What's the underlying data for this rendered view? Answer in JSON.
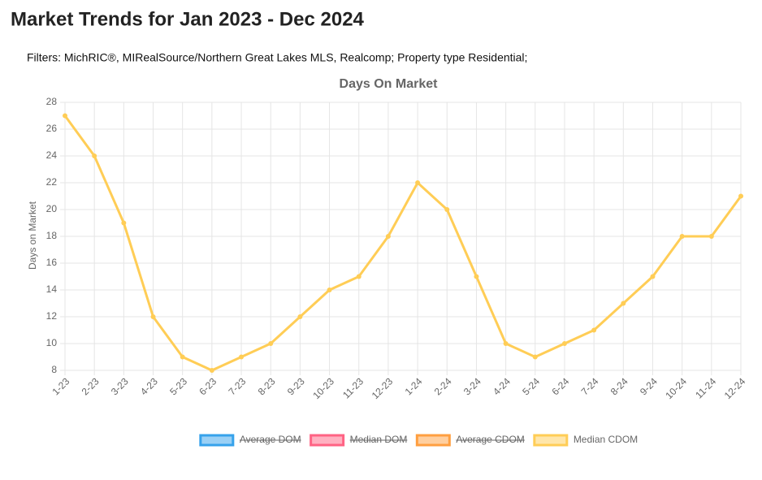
{
  "header": {
    "title": "Market Trends for Jan 2023 - Dec 2024",
    "filters": "Filters: MichRIC®, MIRealSource/Northern Great Lakes MLS, Realcomp; Property type Residential;"
  },
  "chart_data": {
    "type": "line",
    "title": "Days On Market",
    "y_label": "Days on Market",
    "categories": [
      "1-23",
      "2-23",
      "3-23",
      "4-23",
      "5-23",
      "6-23",
      "7-23",
      "8-23",
      "9-23",
      "10-23",
      "11-23",
      "12-23",
      "1-24",
      "2-24",
      "3-24",
      "4-24",
      "5-24",
      "6-24",
      "7-24",
      "8-24",
      "9-24",
      "10-24",
      "11-24",
      "12-24"
    ],
    "series": [
      {
        "name": "Average DOM",
        "color": "#36a2eb",
        "hidden": true
      },
      {
        "name": "Median DOM",
        "color": "#ff6384",
        "hidden": true
      },
      {
        "name": "Average CDOM",
        "color": "#ff9f40",
        "hidden": true
      },
      {
        "name": "Median CDOM",
        "color": "#ffcd56",
        "values": [
          27,
          24,
          19,
          12,
          9,
          8,
          9,
          10,
          12,
          14,
          15,
          18,
          22,
          20,
          15,
          10,
          9,
          10,
          11,
          13,
          15,
          18,
          18,
          21
        ]
      }
    ],
    "ylim": [
      8,
      28
    ],
    "yticks": [
      8,
      10,
      12,
      14,
      16,
      18,
      20,
      22,
      24,
      26,
      28
    ],
    "grid": true,
    "legend": "bottom"
  }
}
